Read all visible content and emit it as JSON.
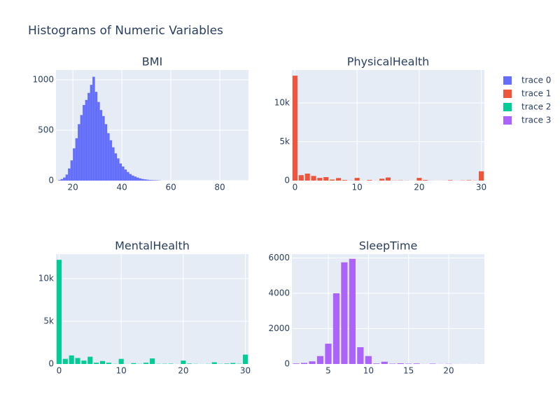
{
  "title": "Histograms of Numeric Variables",
  "legend": "right",
  "chart_data": [
    {
      "type": "histogram",
      "title": "BMI",
      "bins": [
        14,
        15,
        16,
        17,
        18,
        19,
        20,
        21,
        22,
        23,
        24,
        25,
        26,
        27,
        28,
        29,
        30,
        31,
        32,
        33,
        34,
        35,
        36,
        37,
        38,
        39,
        40,
        41,
        42,
        43,
        44,
        45,
        46,
        47,
        48,
        49,
        50,
        51,
        52,
        53,
        54,
        55,
        56
      ],
      "series": [
        {
          "name": "trace 0",
          "color": "#636efa",
          "values": [
            5,
            15,
            30,
            60,
            120,
            200,
            320,
            420,
            560,
            650,
            750,
            800,
            870,
            950,
            1030,
            880,
            780,
            700,
            640,
            560,
            470,
            400,
            330,
            270,
            220,
            170,
            140,
            110,
            85,
            65,
            50,
            40,
            30,
            22,
            16,
            12,
            9,
            6,
            5,
            4,
            3,
            2
          ]
        }
      ],
      "xlim": [
        13.1,
        91.7
      ],
      "ylim": [
        0,
        1097
      ],
      "xticks": [
        20,
        40,
        60,
        80
      ],
      "yticks": [
        0,
        500,
        1000
      ],
      "grid": true
    },
    {
      "type": "histogram",
      "title": "PhysicalHealth",
      "bins": [
        -0.5,
        0.5,
        1.5,
        2.5,
        3.5,
        4.5,
        5.5,
        6.5,
        7.5,
        8.5,
        9.5,
        10.5,
        11.5,
        12.5,
        13.5,
        14.5,
        15.5,
        16.5,
        17.5,
        18.5,
        19.5,
        20.5,
        21.5,
        22.5,
        23.5,
        24.5,
        25.5,
        26.5,
        27.5,
        28.5,
        29.5,
        30.5
      ],
      "series": [
        {
          "name": "trace 1",
          "color": "#EF553B",
          "values": [
            13500,
            700,
            900,
            600,
            350,
            450,
            130,
            330,
            80,
            20,
            350,
            10,
            80,
            10,
            240,
            400,
            20,
            30,
            20,
            5,
            350,
            80,
            10,
            5,
            10,
            60,
            10,
            30,
            50,
            20,
            1200
          ]
        }
      ],
      "xlim": [
        -0.5,
        30.5
      ],
      "ylim": [
        0,
        14230
      ],
      "xticks": [
        0,
        10,
        20,
        30
      ],
      "yticks": [
        0,
        {
          "value": 5000,
          "label": "5k"
        },
        {
          "value": 10000,
          "label": "10k"
        }
      ],
      "grid": true
    },
    {
      "type": "histogram",
      "title": "MentalHealth",
      "bins": [
        -0.5,
        0.5,
        1.5,
        2.5,
        3.5,
        4.5,
        5.5,
        6.5,
        7.5,
        8.5,
        9.5,
        10.5,
        11.5,
        12.5,
        13.5,
        14.5,
        15.5,
        16.5,
        17.5,
        18.5,
        19.5,
        20.5,
        21.5,
        22.5,
        23.5,
        24.5,
        25.5,
        26.5,
        27.5,
        28.5,
        29.5,
        30.5
      ],
      "series": [
        {
          "name": "trace 2",
          "color": "#00cc96",
          "values": [
            12200,
            600,
            1000,
            700,
            400,
            850,
            150,
            350,
            150,
            20,
            600,
            10,
            100,
            20,
            150,
            650,
            20,
            30,
            40,
            10,
            400,
            50,
            20,
            10,
            20,
            200,
            20,
            50,
            120,
            30,
            1100
          ]
        }
      ],
      "xlim": [
        -0.5,
        30.5
      ],
      "ylim": [
        0,
        12870
      ],
      "xticks": [
        0,
        10,
        20,
        30
      ],
      "yticks": [
        0,
        {
          "value": 5000,
          "label": "5k"
        },
        {
          "value": 10000,
          "label": "10k"
        }
      ],
      "grid": true
    },
    {
      "type": "histogram",
      "title": "SleepTime",
      "bins": [
        0.5,
        1.5,
        2.5,
        3.5,
        4.5,
        5.5,
        6.5,
        7.5,
        8.5,
        9.5,
        10.5,
        11.5,
        12.5,
        13.5,
        14.5,
        15.5,
        16.5,
        17.5,
        18.5,
        19.5,
        20.5,
        21.5,
        22.5,
        23.5,
        24.5
      ],
      "series": [
        {
          "name": "trace 3",
          "color": "#ab63fa",
          "values": [
            30,
            60,
            150,
            450,
            1150,
            4000,
            5750,
            5950,
            950,
            450,
            30,
            130,
            20,
            40,
            20,
            30,
            5,
            20,
            5,
            10,
            3,
            3,
            3,
            5
          ]
        }
      ],
      "xlim": [
        0.47,
        24.44
      ],
      "ylim": [
        0,
        6218
      ],
      "xticks": [
        5,
        10,
        15,
        20
      ],
      "yticks": [
        0,
        2000,
        4000,
        6000
      ],
      "grid": true
    }
  ]
}
